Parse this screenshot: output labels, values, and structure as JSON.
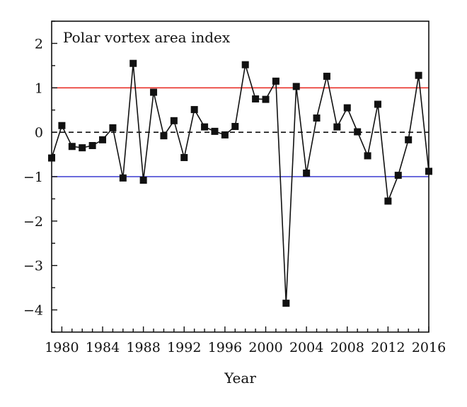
{
  "chart_data": {
    "type": "line",
    "title": "Polar vortex area index",
    "xlabel": "Year",
    "ylabel": "",
    "xlim": [
      1979,
      2016
    ],
    "ylim": [
      -4.5,
      2.5
    ],
    "x_ticks": [
      1980,
      1984,
      1988,
      1992,
      1996,
      2000,
      2004,
      2008,
      2012,
      2016
    ],
    "x_tick_labels": [
      "1980",
      "1984",
      "1988",
      "1992",
      "1996",
      "2000",
      "2004",
      "2008",
      "2012",
      "2016"
    ],
    "y_ticks": [
      2,
      1,
      0,
      -1,
      -2,
      -3,
      -4
    ],
    "y_tick_labels": [
      "2",
      "1",
      "0",
      "−1",
      "−2",
      "−3",
      "−4"
    ],
    "grid": false,
    "reference_lines": [
      {
        "y": 1,
        "color": "#e8312a",
        "style": "solid"
      },
      {
        "y": 0,
        "color": "#111111",
        "style": "dashed"
      },
      {
        "y": -1,
        "color": "#3a3ad0",
        "style": "solid"
      }
    ],
    "series": [
      {
        "marker": "square",
        "color": "#111111",
        "x": [
          1979,
          1980,
          1981,
          1982,
          1983,
          1984,
          1985,
          1986,
          1987,
          1988,
          1989,
          1990,
          1991,
          1992,
          1993,
          1994,
          1995,
          1996,
          1997,
          1998,
          1999,
          2000,
          2001,
          2002,
          2003,
          2004,
          2005,
          2006,
          2007,
          2008,
          2009,
          2010,
          2011,
          2012,
          2013,
          2014,
          2015,
          2016
        ],
        "y": [
          -0.58,
          0.15,
          -0.32,
          -0.35,
          -0.3,
          -0.17,
          0.1,
          -1.03,
          1.55,
          -1.08,
          0.9,
          -0.08,
          0.26,
          -0.57,
          0.51,
          0.12,
          0.02,
          -0.06,
          0.13,
          1.52,
          0.75,
          0.74,
          1.15,
          -3.85,
          1.03,
          -0.92,
          0.32,
          1.26,
          0.12,
          0.55,
          0.01,
          -0.53,
          0.63,
          -1.55,
          -0.97,
          -0.17,
          1.28,
          -0.88
        ]
      }
    ]
  }
}
